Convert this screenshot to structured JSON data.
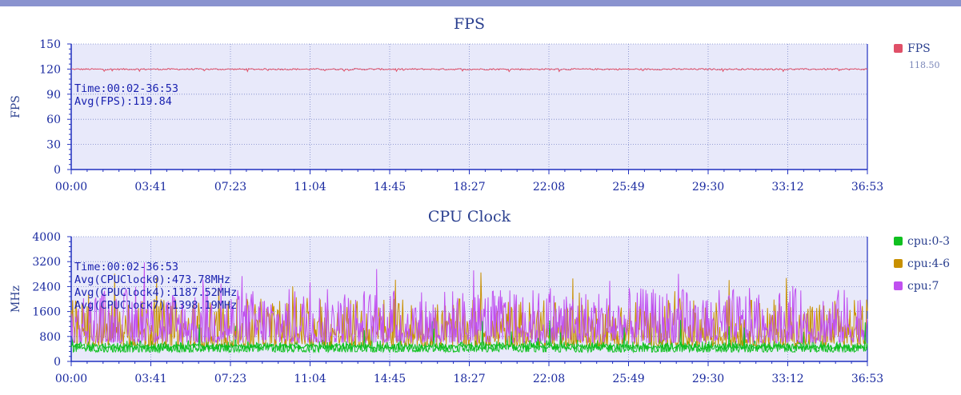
{
  "chart_data": [
    {
      "type": "line",
      "title": "FPS",
      "ylabel": "FPS",
      "ylim": [
        0,
        150
      ],
      "yticks": [
        "0",
        "30",
        "60",
        "90",
        "120",
        "150"
      ],
      "xticks": [
        "00:00",
        "03:41",
        "07:23",
        "11:04",
        "14:45",
        "18:27",
        "22:08",
        "25:49",
        "29:30",
        "33:12",
        "36:53"
      ],
      "grid": true,
      "legend_position": "right",
      "annotations": [
        "Time:00:02-36:53",
        "Avg(FPS):119.84"
      ],
      "series": [
        {
          "name": "FPS",
          "legend_value": "118.50",
          "color": "#e05068",
          "mean": 119.84,
          "min": 117,
          "max": 121
        }
      ]
    },
    {
      "type": "line",
      "title": "CPU Clock",
      "ylabel": "MHz",
      "ylim": [
        0,
        4000
      ],
      "yticks": [
        "0",
        "800",
        "1600",
        "2400",
        "3200",
        "4000"
      ],
      "xticks": [
        "00:00",
        "03:41",
        "07:23",
        "11:04",
        "14:45",
        "18:27",
        "22:08",
        "25:49",
        "29:30",
        "33:12",
        "36:53"
      ],
      "grid": true,
      "legend_position": "right",
      "annotations": [
        "Time:00:02-36:53",
        "Avg(CPUClock0):473.78MHz",
        "Avg(CPUClock4):1187.52MHz",
        "Avg(CPUClock7):1398.19MHz"
      ],
      "series": [
        {
          "name": "cpu:0-3",
          "color": "#10c020",
          "mean": 473.78,
          "min": 300,
          "max": 1400
        },
        {
          "name": "cpu:4-6",
          "color": "#c89000",
          "mean": 1187.52,
          "min": 500,
          "max": 2900
        },
        {
          "name": "cpu:7",
          "color": "#c050f0",
          "mean": 1398.19,
          "min": 600,
          "max": 3300
        }
      ]
    }
  ]
}
